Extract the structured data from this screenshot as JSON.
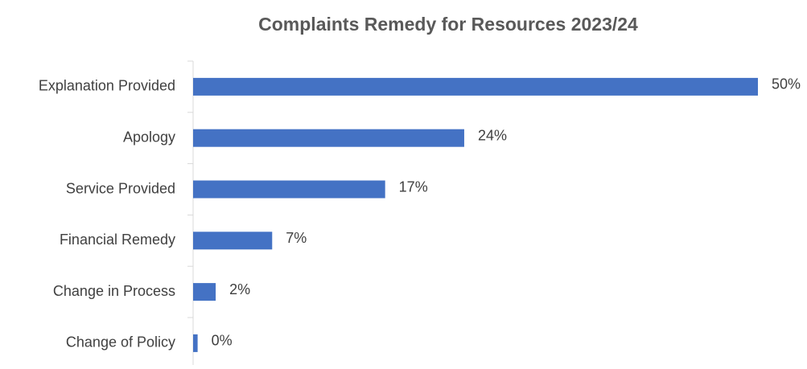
{
  "chart_data": {
    "type": "hbar",
    "title": "Complaints Remedy for Resources 2023/24",
    "categories": [
      "Explanation Provided",
      "Apology",
      "Service Provided",
      "Financial Remedy",
      "Change in Process",
      "Change of Policy"
    ],
    "values": [
      50,
      24,
      17,
      7,
      2,
      0.4
    ],
    "value_labels": [
      "50%",
      "24%",
      "17%",
      "7%",
      "2%",
      "0%"
    ],
    "color": "#4472c4"
  }
}
